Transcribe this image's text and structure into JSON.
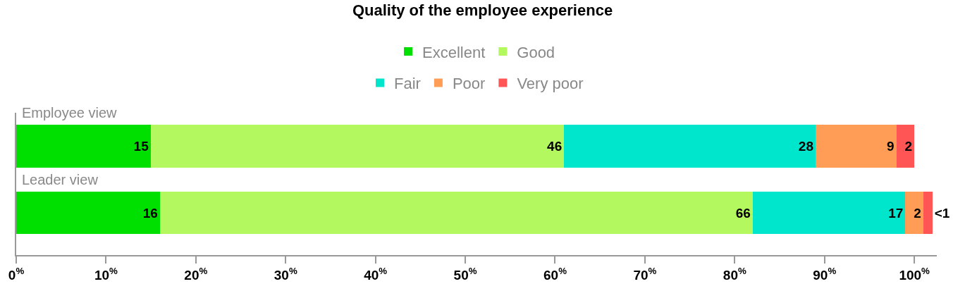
{
  "chart_data": {
    "type": "bar",
    "orientation": "horizontal",
    "stacked": true,
    "title": "Quality of the employee experience",
    "categories": [
      "Employee view",
      "Leader view"
    ],
    "series": [
      {
        "name": "Excellent",
        "color": "#00e000",
        "values": [
          15,
          16
        ]
      },
      {
        "name": "Good",
        "color": "#b3f85f",
        "values": [
          46,
          66
        ]
      },
      {
        "name": "Fair",
        "color": "#00e6cc",
        "values": [
          28,
          17
        ]
      },
      {
        "name": "Poor",
        "color": "#ff9d57",
        "values": [
          9,
          2
        ]
      },
      {
        "name": "Very poor",
        "color": "#ff5555",
        "values": [
          2,
          1
        ],
        "value_labels": [
          "2",
          "<1"
        ]
      }
    ],
    "data_labels": true,
    "xlim": [
      0,
      102.5
    ],
    "xticks": [
      {
        "value": 0,
        "label": "0$^{%}$"
      },
      {
        "value": 10,
        "label": "10$^{%}$"
      },
      {
        "value": 20,
        "label": "20$^{%}$"
      },
      {
        "value": 30,
        "label": "30$^{%}$"
      },
      {
        "value": 40,
        "label": "40$^{%}$"
      },
      {
        "value": 50,
        "label": "50$^{%}$"
      },
      {
        "value": 60,
        "label": "60$^{%}$"
      },
      {
        "value": 70,
        "label": "70$^{%}$"
      },
      {
        "value": 80,
        "label": "80$^{%}$"
      },
      {
        "value": 90,
        "label": "90$^{%}$"
      },
      {
        "value": 100,
        "label": "100$^{%}$"
      }
    ],
    "legend": "top"
  }
}
